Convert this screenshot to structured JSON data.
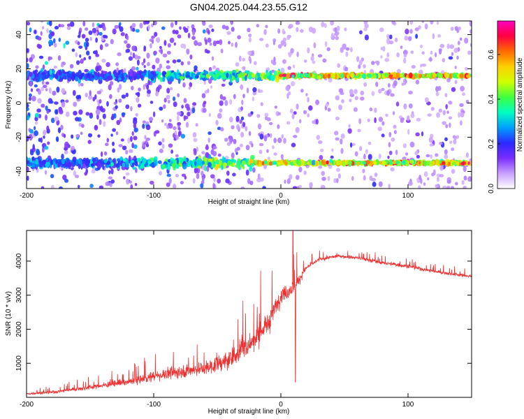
{
  "title": "GN04.2025.044.23.55.G12",
  "chart_data": [
    {
      "type": "heatmap",
      "title": "GN04.2025.044.23.55.G12",
      "xlabel": "Height of straight line (km)",
      "ylabel": "Frequency (Hz)",
      "xlim": [
        -200,
        150
      ],
      "ylim": [
        -50,
        48
      ],
      "xticks": [
        -200,
        -100,
        0,
        100
      ],
      "yticks": [
        -40,
        -20,
        0,
        20,
        40
      ],
      "bands": [
        {
          "center_hz": 16,
          "strong_from_km": 0,
          "strong_to_km": 150
        },
        {
          "center_hz": -35,
          "strong_from_km": -20,
          "strong_to_km": 150
        }
      ],
      "colorbar": {
        "label": "Normalized spectral amplitude",
        "range": [
          0.0,
          0.75
        ],
        "ticks": [
          0.0,
          0.2,
          0.4,
          0.6
        ],
        "colors": [
          "#ffffff",
          "#c9a0ff",
          "#7a2dff",
          "#2a2aff",
          "#00a0ff",
          "#00ffc0",
          "#40ff40",
          "#d0ff00",
          "#ffd000",
          "#ff6a00",
          "#ff0040",
          "#ff00c0"
        ]
      }
    },
    {
      "type": "line",
      "xlabel": "Height of straight line (km)",
      "ylabel": "SNR (10 * v/v)",
      "xlim": [
        -200,
        150
      ],
      "ylim": [
        0,
        4900
      ],
      "xticks": [
        -200,
        -100,
        0,
        100
      ],
      "yticks": [
        1000,
        2000,
        3000,
        4000
      ],
      "color": "#ee3030",
      "envelope": [
        {
          "x": -200,
          "y": 100,
          "noise": 120
        },
        {
          "x": -180,
          "y": 150,
          "noise": 150
        },
        {
          "x": -150,
          "y": 300,
          "noise": 250
        },
        {
          "x": -120,
          "y": 450,
          "noise": 350
        },
        {
          "x": -90,
          "y": 700,
          "noise": 700
        },
        {
          "x": -60,
          "y": 850,
          "noise": 800
        },
        {
          "x": -40,
          "y": 1100,
          "noise": 1000
        },
        {
          "x": -20,
          "y": 1700,
          "noise": 1300
        },
        {
          "x": -10,
          "y": 2200,
          "noise": 1200
        },
        {
          "x": 0,
          "y": 3000,
          "noise": 900
        },
        {
          "x": 10,
          "y": 3200,
          "noise": 800
        },
        {
          "x": 20,
          "y": 3800,
          "noise": 300
        },
        {
          "x": 30,
          "y": 4050,
          "noise": 220
        },
        {
          "x": 45,
          "y": 4150,
          "noise": 200
        },
        {
          "x": 60,
          "y": 4100,
          "noise": 200
        },
        {
          "x": 80,
          "y": 3950,
          "noise": 200
        },
        {
          "x": 100,
          "y": 3850,
          "noise": 200
        },
        {
          "x": 120,
          "y": 3700,
          "noise": 180
        },
        {
          "x": 150,
          "y": 3550,
          "noise": 180
        }
      ],
      "features": [
        {
          "x": 9.5,
          "y": 4900
        },
        {
          "x": 11.5,
          "y": 450
        }
      ]
    }
  ]
}
